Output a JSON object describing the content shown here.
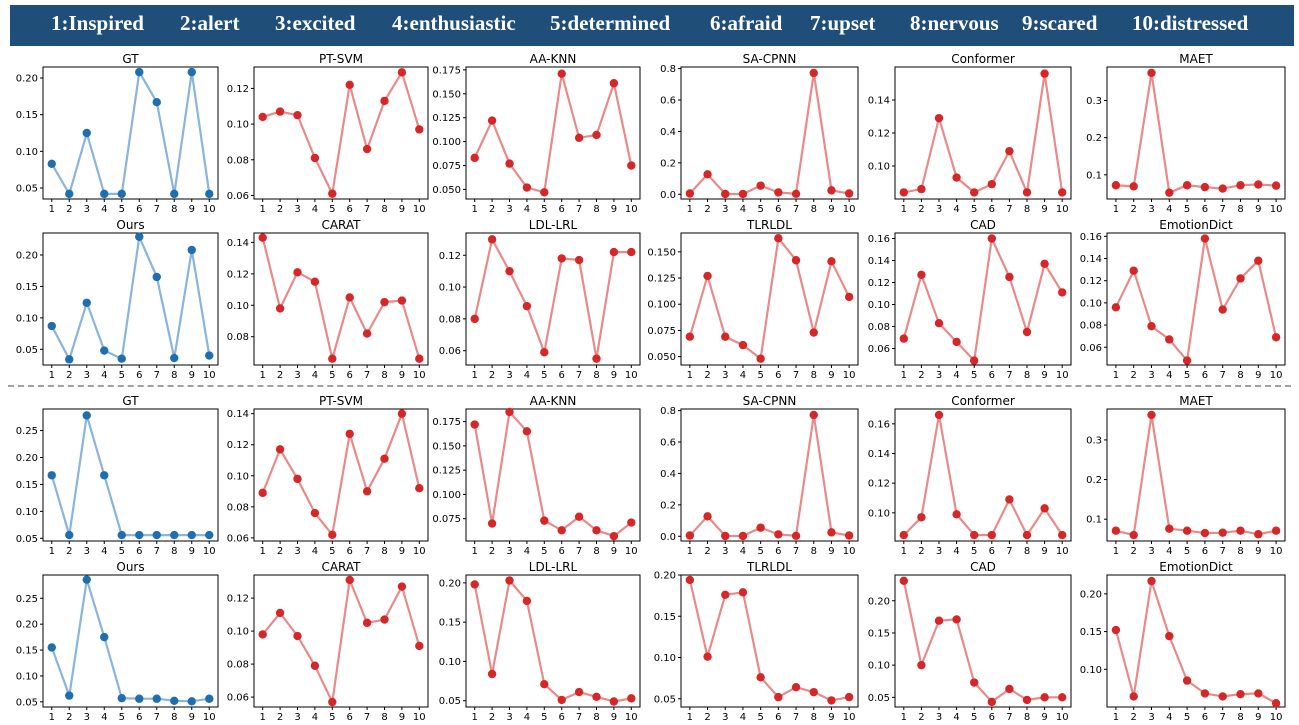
{
  "legend": [
    {
      "label": "1:Inspired"
    },
    {
      "label": "2:alert"
    },
    {
      "label": "3:excited"
    },
    {
      "label": "4:enthusiastic"
    },
    {
      "label": "5:determined"
    },
    {
      "label": "6:afraid"
    },
    {
      "label": "7:upset"
    },
    {
      "label": "8:nervous"
    },
    {
      "label": "9:scared"
    },
    {
      "label": "10:distressed"
    }
  ],
  "colors": {
    "header_bg": "#1f4e79",
    "gt_line": "#8ab4dc",
    "gt_marker": "#1f6fb0",
    "pred_line": "#e88a8a",
    "pred_marker": "#d62728",
    "divider": "#a0a0a0"
  },
  "chart_data": [
    {
      "type": "line",
      "title": "GT",
      "color": "blue",
      "x": [
        1,
        2,
        3,
        4,
        5,
        6,
        7,
        8,
        9,
        10
      ],
      "values": [
        0.083,
        0.042,
        0.125,
        0.042,
        0.042,
        0.208,
        0.167,
        0.042,
        0.208,
        0.042
      ],
      "ylim": [
        0.035,
        0.215
      ],
      "yticks": [
        0.05,
        0.1,
        0.15,
        0.2
      ],
      "ytick_labels": [
        "0.05",
        "0.10",
        "0.15",
        "0.20"
      ]
    },
    {
      "type": "line",
      "title": "PT-SVM",
      "color": "red",
      "x": [
        1,
        2,
        3,
        4,
        5,
        6,
        7,
        8,
        9,
        10
      ],
      "values": [
        0.104,
        0.107,
        0.105,
        0.081,
        0.061,
        0.122,
        0.086,
        0.113,
        0.129,
        0.097
      ],
      "ylim": [
        0.058,
        0.132
      ],
      "yticks": [
        0.06,
        0.08,
        0.1,
        0.12
      ],
      "ytick_labels": [
        "0.06",
        "0.08",
        "0.10",
        "0.12"
      ]
    },
    {
      "type": "line",
      "title": "AA-KNN",
      "color": "red",
      "x": [
        1,
        2,
        3,
        4,
        5,
        6,
        7,
        8,
        9,
        10
      ],
      "values": [
        0.083,
        0.122,
        0.077,
        0.052,
        0.047,
        0.171,
        0.104,
        0.107,
        0.161,
        0.075
      ],
      "ylim": [
        0.04,
        0.178
      ],
      "yticks": [
        0.05,
        0.075,
        0.1,
        0.125,
        0.15,
        0.175
      ],
      "ytick_labels": [
        "0.050",
        "0.075",
        "0.100",
        "0.125",
        "0.150",
        "0.175"
      ]
    },
    {
      "type": "line",
      "title": "SA-CPNN",
      "color": "red",
      "x": [
        1,
        2,
        3,
        4,
        5,
        6,
        7,
        8,
        9,
        10
      ],
      "values": [
        0.005,
        0.127,
        0.002,
        0.002,
        0.055,
        0.012,
        0.003,
        0.772,
        0.025,
        0.005
      ],
      "ylim": [
        -0.03,
        0.81
      ],
      "yticks": [
        0,
        0.2,
        0.4,
        0.6,
        0.8
      ],
      "ytick_labels": [
        "0.0",
        "0.2",
        "0.4",
        "0.6",
        "0.8"
      ]
    },
    {
      "type": "line",
      "title": "Conformer",
      "color": "red",
      "x": [
        1,
        2,
        3,
        4,
        5,
        6,
        7,
        8,
        9,
        10
      ],
      "values": [
        0.084,
        0.086,
        0.129,
        0.093,
        0.084,
        0.089,
        0.109,
        0.084,
        0.156,
        0.084
      ],
      "ylim": [
        0.08,
        0.16
      ],
      "yticks": [
        0.1,
        0.12,
        0.14
      ],
      "ytick_labels": [
        "0.10",
        "0.12",
        "0.14"
      ]
    },
    {
      "type": "line",
      "title": "MAET",
      "color": "red",
      "x": [
        1,
        2,
        3,
        4,
        5,
        6,
        7,
        8,
        9,
        10
      ],
      "values": [
        0.072,
        0.069,
        0.374,
        0.052,
        0.072,
        0.067,
        0.063,
        0.072,
        0.074,
        0.071
      ],
      "ylim": [
        0.035,
        0.39
      ],
      "yticks": [
        0.1,
        0.2,
        0.3
      ],
      "ytick_labels": [
        "0.1",
        "0.2",
        "0.3"
      ]
    },
    {
      "type": "line",
      "title": "Ours",
      "color": "blue",
      "x": [
        1,
        2,
        3,
        4,
        5,
        6,
        7,
        8,
        9,
        10
      ],
      "values": [
        0.087,
        0.034,
        0.124,
        0.048,
        0.035,
        0.229,
        0.165,
        0.036,
        0.208,
        0.04
      ],
      "ylim": [
        0.025,
        0.235
      ],
      "yticks": [
        0.05,
        0.1,
        0.15,
        0.2
      ],
      "ytick_labels": [
        "0.05",
        "0.10",
        "0.15",
        "0.20"
      ]
    },
    {
      "type": "line",
      "title": "CARAT",
      "color": "red",
      "x": [
        1,
        2,
        3,
        4,
        5,
        6,
        7,
        8,
        9,
        10
      ],
      "values": [
        0.143,
        0.098,
        0.121,
        0.115,
        0.066,
        0.105,
        0.082,
        0.102,
        0.103,
        0.066
      ],
      "ylim": [
        0.062,
        0.146
      ],
      "yticks": [
        0.08,
        0.1,
        0.12,
        0.14
      ],
      "ytick_labels": [
        "0.08",
        "0.10",
        "0.12",
        "0.14"
      ]
    },
    {
      "type": "line",
      "title": "LDL-LRL",
      "color": "red",
      "x": [
        1,
        2,
        3,
        4,
        5,
        6,
        7,
        8,
        9,
        10
      ],
      "values": [
        0.08,
        0.13,
        0.11,
        0.088,
        0.059,
        0.118,
        0.117,
        0.055,
        0.122,
        0.122
      ],
      "ylim": [
        0.051,
        0.134
      ],
      "yticks": [
        0.06,
        0.08,
        0.1,
        0.12
      ],
      "ytick_labels": [
        "0.06",
        "0.08",
        "0.10",
        "0.12"
      ]
    },
    {
      "type": "line",
      "title": "TLRLDL",
      "color": "red",
      "x": [
        1,
        2,
        3,
        4,
        5,
        6,
        7,
        8,
        9,
        10
      ],
      "values": [
        0.069,
        0.127,
        0.069,
        0.061,
        0.048,
        0.163,
        0.142,
        0.073,
        0.141,
        0.107
      ],
      "ylim": [
        0.042,
        0.168
      ],
      "yticks": [
        0.05,
        0.075,
        0.1,
        0.125,
        0.15
      ],
      "ytick_labels": [
        "0.050",
        "0.075",
        "0.100",
        "0.125",
        "0.150"
      ]
    },
    {
      "type": "line",
      "title": "CAD",
      "color": "red",
      "x": [
        1,
        2,
        3,
        4,
        5,
        6,
        7,
        8,
        9,
        10
      ],
      "values": [
        0.069,
        0.127,
        0.083,
        0.066,
        0.049,
        0.16,
        0.125,
        0.075,
        0.137,
        0.111
      ],
      "ylim": [
        0.045,
        0.165
      ],
      "yticks": [
        0.06,
        0.08,
        0.1,
        0.12,
        0.14,
        0.16
      ],
      "ytick_labels": [
        "0.06",
        "0.08",
        "0.10",
        "0.12",
        "0.14",
        "0.16"
      ]
    },
    {
      "type": "line",
      "title": "EmotionDict",
      "color": "red",
      "x": [
        1,
        2,
        3,
        4,
        5,
        6,
        7,
        8,
        9,
        10
      ],
      "values": [
        0.096,
        0.129,
        0.079,
        0.067,
        0.048,
        0.158,
        0.094,
        0.122,
        0.138,
        0.069
      ],
      "ylim": [
        0.044,
        0.163
      ],
      "yticks": [
        0.06,
        0.08,
        0.1,
        0.12,
        0.14,
        0.16
      ],
      "ytick_labels": [
        "0.06",
        "0.08",
        "0.10",
        "0.12",
        "0.14",
        "0.16"
      ]
    },
    {
      "type": "line",
      "title": "GT",
      "color": "blue",
      "x": [
        1,
        2,
        3,
        4,
        5,
        6,
        7,
        8,
        9,
        10
      ],
      "values": [
        0.167,
        0.056,
        0.278,
        0.167,
        0.056,
        0.056,
        0.056,
        0.056,
        0.056,
        0.056
      ],
      "ylim": [
        0.045,
        0.29
      ],
      "yticks": [
        0.05,
        0.1,
        0.15,
        0.2,
        0.25
      ],
      "ytick_labels": [
        "0.05",
        "0.10",
        "0.15",
        "0.20",
        "0.25"
      ]
    },
    {
      "type": "line",
      "title": "PT-SVM",
      "color": "red",
      "x": [
        1,
        2,
        3,
        4,
        5,
        6,
        7,
        8,
        9,
        10
      ],
      "values": [
        0.089,
        0.117,
        0.098,
        0.076,
        0.062,
        0.127,
        0.09,
        0.111,
        0.14,
        0.092
      ],
      "ylim": [
        0.058,
        0.143
      ],
      "yticks": [
        0.06,
        0.08,
        0.1,
        0.12,
        0.14
      ],
      "ytick_labels": [
        "0.06",
        "0.08",
        "0.10",
        "0.12",
        "0.14"
      ]
    },
    {
      "type": "line",
      "title": "AA-KNN",
      "color": "red",
      "x": [
        1,
        2,
        3,
        4,
        5,
        6,
        7,
        8,
        9,
        10
      ],
      "values": [
        0.172,
        0.07,
        0.185,
        0.165,
        0.073,
        0.063,
        0.077,
        0.063,
        0.057,
        0.071
      ],
      "ylim": [
        0.052,
        0.188
      ],
      "yticks": [
        0.075,
        0.1,
        0.125,
        0.15,
        0.175
      ],
      "ytick_labels": [
        "0.075",
        "0.100",
        "0.125",
        "0.150",
        "0.175"
      ]
    },
    {
      "type": "line",
      "title": "SA-CPNN",
      "color": "red",
      "x": [
        1,
        2,
        3,
        4,
        5,
        6,
        7,
        8,
        9,
        10
      ],
      "values": [
        0.005,
        0.127,
        0.002,
        0.002,
        0.055,
        0.012,
        0.003,
        0.772,
        0.025,
        0.005
      ],
      "ylim": [
        -0.03,
        0.81
      ],
      "yticks": [
        0,
        0.2,
        0.4,
        0.6,
        0.8
      ],
      "ytick_labels": [
        "0.0",
        "0.2",
        "0.4",
        "0.6",
        "0.8"
      ]
    },
    {
      "type": "line",
      "title": "Conformer",
      "color": "red",
      "x": [
        1,
        2,
        3,
        4,
        5,
        6,
        7,
        8,
        9,
        10
      ],
      "values": [
        0.085,
        0.097,
        0.166,
        0.099,
        0.085,
        0.085,
        0.109,
        0.085,
        0.103,
        0.085
      ],
      "ylim": [
        0.081,
        0.17
      ],
      "yticks": [
        0.1,
        0.12,
        0.14,
        0.16
      ],
      "ytick_labels": [
        "0.10",
        "0.12",
        "0.14",
        "0.16"
      ]
    },
    {
      "type": "line",
      "title": "MAET",
      "color": "red",
      "x": [
        1,
        2,
        3,
        4,
        5,
        6,
        7,
        8,
        9,
        10
      ],
      "values": [
        0.071,
        0.06,
        0.363,
        0.076,
        0.071,
        0.065,
        0.066,
        0.071,
        0.062,
        0.071
      ],
      "ylim": [
        0.045,
        0.378
      ],
      "yticks": [
        0.1,
        0.2,
        0.3
      ],
      "ytick_labels": [
        "0.1",
        "0.2",
        "0.3"
      ]
    },
    {
      "type": "line",
      "title": "Ours",
      "color": "blue",
      "x": [
        1,
        2,
        3,
        4,
        5,
        6,
        7,
        8,
        9,
        10
      ],
      "values": [
        0.155,
        0.062,
        0.286,
        0.175,
        0.057,
        0.056,
        0.056,
        0.052,
        0.051,
        0.056
      ],
      "ylim": [
        0.04,
        0.295
      ],
      "yticks": [
        0.05,
        0.1,
        0.15,
        0.2,
        0.25
      ],
      "ytick_labels": [
        "0.05",
        "0.10",
        "0.15",
        "0.20",
        "0.25"
      ]
    },
    {
      "type": "line",
      "title": "CARAT",
      "color": "red",
      "x": [
        1,
        2,
        3,
        4,
        5,
        6,
        7,
        8,
        9,
        10
      ],
      "values": [
        0.098,
        0.111,
        0.097,
        0.079,
        0.057,
        0.131,
        0.105,
        0.107,
        0.127,
        0.091
      ],
      "ylim": [
        0.054,
        0.134
      ],
      "yticks": [
        0.06,
        0.08,
        0.1,
        0.12
      ],
      "ytick_labels": [
        "0.06",
        "0.08",
        "0.10",
        "0.12"
      ]
    },
    {
      "type": "line",
      "title": "LDL-LRL",
      "color": "red",
      "x": [
        1,
        2,
        3,
        4,
        5,
        6,
        7,
        8,
        9,
        10
      ],
      "values": [
        0.198,
        0.084,
        0.203,
        0.177,
        0.071,
        0.051,
        0.061,
        0.055,
        0.049,
        0.053
      ],
      "ylim": [
        0.042,
        0.21
      ],
      "yticks": [
        0.05,
        0.1,
        0.15,
        0.2
      ],
      "ytick_labels": [
        "0.05",
        "0.10",
        "0.15",
        "0.20"
      ]
    },
    {
      "type": "line",
      "title": "TLRLDL",
      "color": "red",
      "x": [
        1,
        2,
        3,
        4,
        5,
        6,
        7,
        8,
        9,
        10
      ],
      "values": [
        0.194,
        0.101,
        0.176,
        0.179,
        0.076,
        0.052,
        0.064,
        0.058,
        0.048,
        0.052
      ],
      "ylim": [
        0.04,
        0.2
      ],
      "yticks": [
        0.05,
        0.1,
        0.15,
        0.2
      ],
      "ytick_labels": [
        "0.05",
        "0.10",
        "0.15",
        "0.20"
      ]
    },
    {
      "type": "line",
      "title": "CAD",
      "color": "red",
      "x": [
        1,
        2,
        3,
        4,
        5,
        6,
        7,
        8,
        9,
        10
      ],
      "values": [
        0.231,
        0.1,
        0.169,
        0.171,
        0.073,
        0.043,
        0.063,
        0.046,
        0.05,
        0.05
      ],
      "ylim": [
        0.035,
        0.24
      ],
      "yticks": [
        0.05,
        0.1,
        0.15,
        0.2
      ],
      "ytick_labels": [
        "0.05",
        "0.10",
        "0.15",
        "0.20"
      ]
    },
    {
      "type": "line",
      "title": "EmotionDict",
      "color": "red",
      "x": [
        1,
        2,
        3,
        4,
        5,
        6,
        7,
        8,
        9,
        10
      ],
      "values": [
        0.152,
        0.064,
        0.217,
        0.144,
        0.085,
        0.068,
        0.064,
        0.067,
        0.068,
        0.055
      ],
      "ylim": [
        0.05,
        0.225
      ],
      "yticks": [
        0.1,
        0.15,
        0.2
      ],
      "ytick_labels": [
        "0.10",
        "0.15",
        "0.20"
      ]
    }
  ]
}
